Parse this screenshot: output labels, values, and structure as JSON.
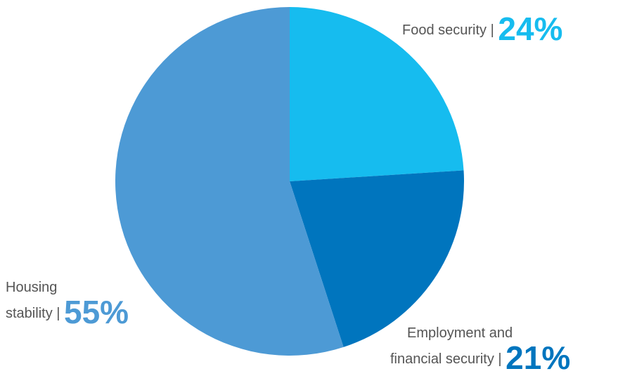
{
  "chart_data": {
    "type": "pie",
    "slices": [
      {
        "name": "Food security",
        "value": 24,
        "value_label": "24%",
        "color": "#16BCEF"
      },
      {
        "name": "Employment and financial security",
        "value": 21,
        "value_label": "21%",
        "color": "#0075BE"
      },
      {
        "name": "Housing stability",
        "value": 55,
        "value_label": "55%",
        "color": "#4D9AD5"
      }
    ]
  },
  "labels": {
    "food": {
      "text": "Food security |",
      "pct": "24%"
    },
    "employment": {
      "line1": "Employment and",
      "line2": "financial security |",
      "pct": "21%"
    },
    "housing": {
      "line1": "Housing",
      "line2": "stability |",
      "pct": "55%"
    }
  }
}
